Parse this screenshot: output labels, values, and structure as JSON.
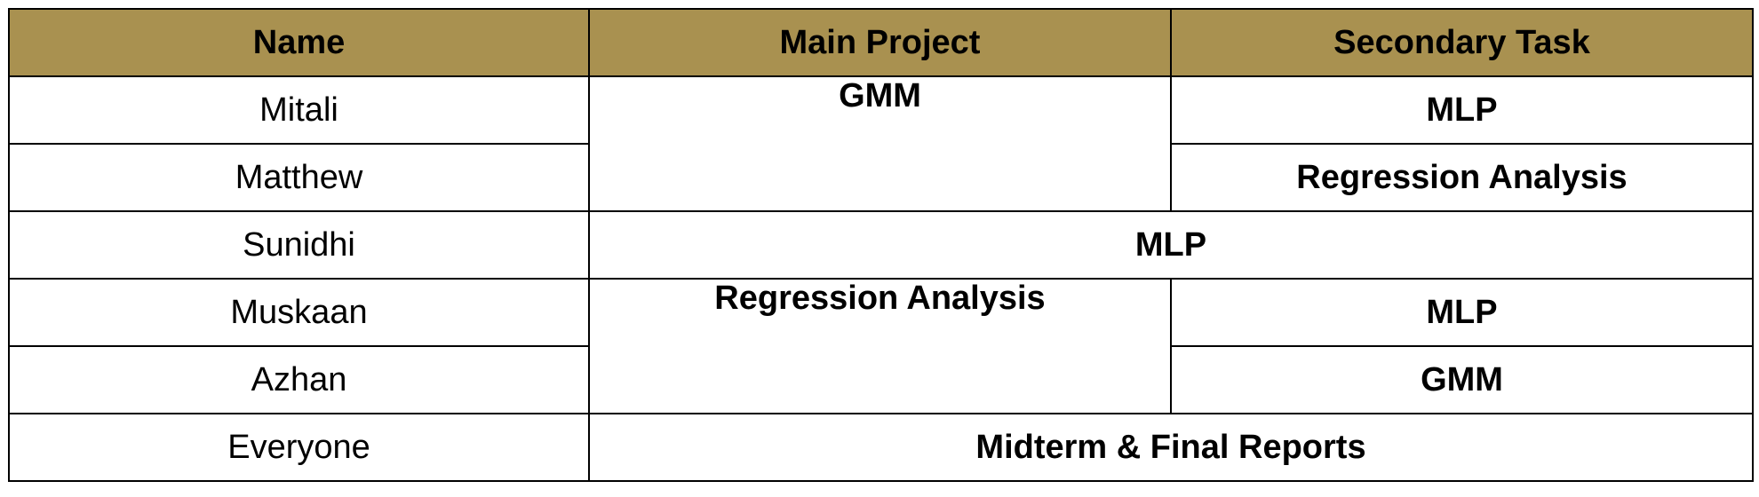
{
  "colors": {
    "header_bg": "#a99150",
    "border": "#000000",
    "text": "#000000",
    "background": "#ffffff"
  },
  "table": {
    "headers": [
      "Name",
      "Main Project",
      "Secondary Task"
    ],
    "rows": [
      {
        "name": "Mitali",
        "main": "GMM",
        "secondary": "MLP"
      },
      {
        "name": "Matthew",
        "main": "",
        "secondary": "Regression Analysis"
      },
      {
        "name": "Sunidhi",
        "main": "MLP",
        "secondary": ""
      },
      {
        "name": "Muskaan",
        "main": "Regression Analysis",
        "secondary": "MLP"
      },
      {
        "name": "Azhan",
        "main": "",
        "secondary": "GMM"
      },
      {
        "name": "Everyone",
        "main": "Midterm & Final Reports",
        "secondary": ""
      }
    ]
  }
}
